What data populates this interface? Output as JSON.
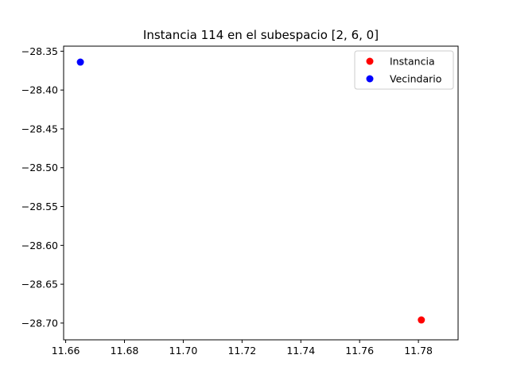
{
  "chart_data": {
    "type": "scatter",
    "title": "Instancia 114 en el subespacio [2, 6, 0]",
    "xlabel": "",
    "ylabel": "",
    "xlim": [
      11.6593,
      11.7935
    ],
    "ylim": [
      -28.7216,
      -28.3435
    ],
    "xticks": [
      11.66,
      11.68,
      11.7,
      11.72,
      11.74,
      11.76,
      11.78
    ],
    "xtick_labels": [
      "11.66",
      "11.68",
      "11.70",
      "11.72",
      "11.74",
      "11.76",
      "11.78"
    ],
    "yticks": [
      -28.35,
      -28.4,
      -28.45,
      -28.5,
      -28.55,
      -28.6,
      -28.65,
      -28.7
    ],
    "ytick_labels": [
      "−28.35",
      "−28.40",
      "−28.45",
      "−28.50",
      "−28.55",
      "−28.60",
      "−28.65",
      "−28.70"
    ],
    "grid": false,
    "legend_position": "top-right",
    "series": [
      {
        "name": "Instancia",
        "color": "#ff0000",
        "points": [
          {
            "x": 11.781,
            "y": -28.696
          }
        ]
      },
      {
        "name": "Vecindario",
        "color": "#0000ff",
        "points": [
          {
            "x": 11.665,
            "y": -28.364
          }
        ]
      }
    ]
  }
}
